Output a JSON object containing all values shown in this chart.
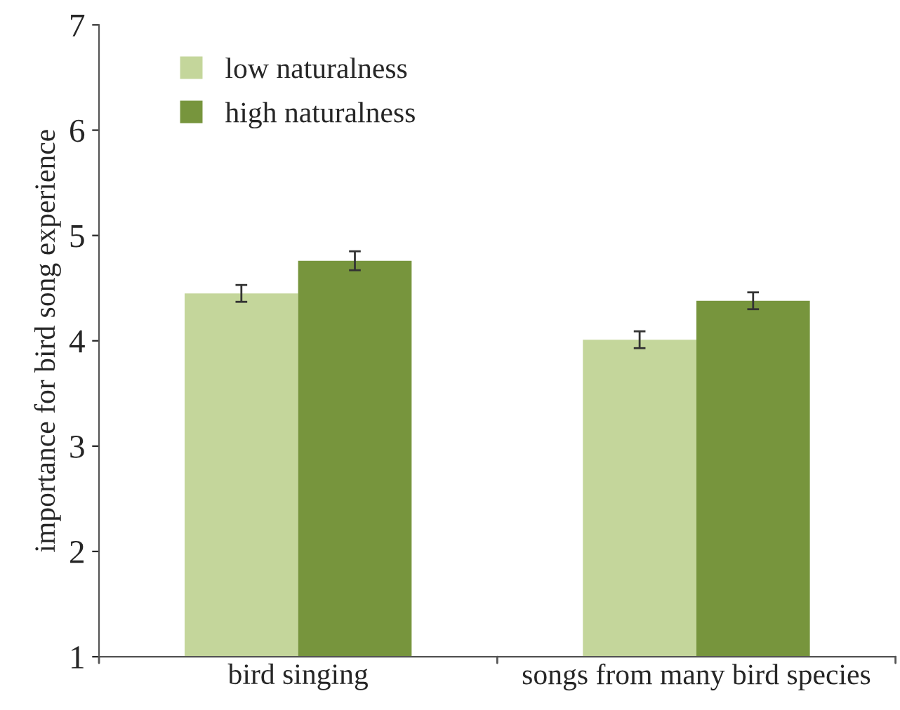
{
  "chart_data": {
    "type": "bar",
    "ylabel": "importance for bird song experience",
    "categories": [
      "bird singing",
      "songs from many bird species"
    ],
    "series": [
      {
        "name": "low naturalness",
        "color": "#c4d69b",
        "values": [
          4.45,
          4.01
        ],
        "errors": [
          0.08,
          0.08
        ]
      },
      {
        "name": "high naturalness",
        "color": "#77953d",
        "values": [
          4.76,
          4.38
        ],
        "errors": [
          0.09,
          0.08
        ]
      }
    ],
    "ylim": [
      1,
      7
    ],
    "yticks": [
      1,
      2,
      3,
      4,
      5,
      6,
      7
    ],
    "grid": false,
    "legend": "top left"
  }
}
